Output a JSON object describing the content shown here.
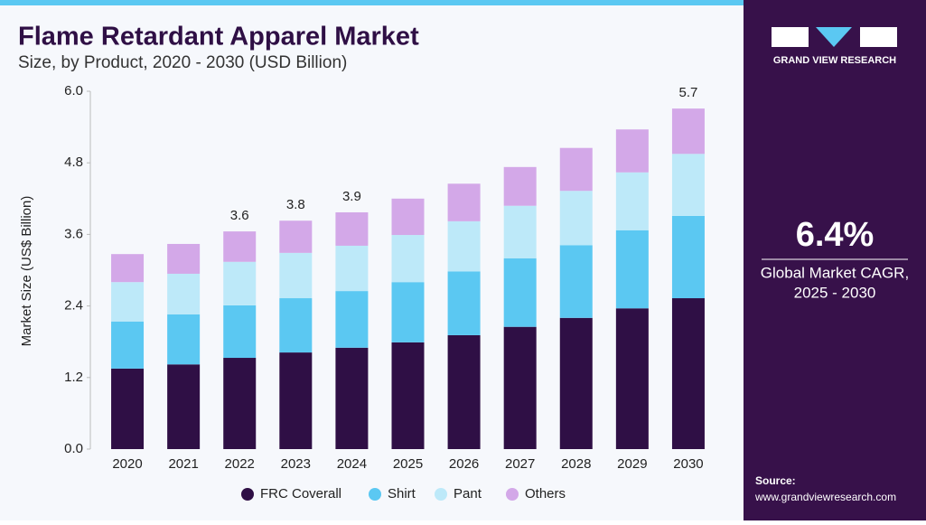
{
  "chart_data": {
    "type": "stacked_bar",
    "title": "Flame Retardant Apparel Market",
    "subtitle": "Size, by Product, 2020 - 2030 (USD Billion)",
    "y_label": "Market Size (US$ Billion)",
    "categories": [
      "2020",
      "2021",
      "2022",
      "2023",
      "2024",
      "2025",
      "2026",
      "2027",
      "2028",
      "2029",
      "2030"
    ],
    "series": [
      {
        "name": "FRC Coverall",
        "color": "#2f0f45",
        "values": [
          1.35,
          1.42,
          1.53,
          1.62,
          1.7,
          1.79,
          1.91,
          2.05,
          2.2,
          2.36,
          2.53
        ]
      },
      {
        "name": "Shirt",
        "color": "#5bc8f2",
        "values": [
          0.79,
          0.84,
          0.88,
          0.91,
          0.95,
          1.01,
          1.07,
          1.15,
          1.22,
          1.31,
          1.38
        ]
      },
      {
        "name": "Pant",
        "color": "#bde9f9",
        "values": [
          0.66,
          0.68,
          0.73,
          0.76,
          0.76,
          0.79,
          0.84,
          0.88,
          0.91,
          0.97,
          1.04
        ]
      },
      {
        "name": "Others",
        "color": "#d3a8e8",
        "values": [
          0.47,
          0.5,
          0.51,
          0.54,
          0.56,
          0.61,
          0.63,
          0.65,
          0.72,
          0.72,
          0.76
        ]
      }
    ],
    "totals": [
      null,
      null,
      3.6,
      3.8,
      3.9,
      null,
      null,
      null,
      null,
      null,
      5.7
    ],
    "ylim": [
      0,
      6
    ],
    "yticks": [
      {
        "value": 0,
        "label": "0.0"
      },
      1.2,
      2.4,
      3.6,
      4.8,
      {
        "value": 6,
        "label": "6.0"
      }
    ],
    "legend": "bottom",
    "grid": false
  },
  "sidebar": {
    "brand": "GRAND VIEW RESEARCH",
    "cagr": "6.4%",
    "cagr_label": [
      "Global Market CAGR,",
      "2025 - 2030"
    ],
    "source_title": "Source:",
    "source_url": "www.grandviewresearch.com"
  }
}
